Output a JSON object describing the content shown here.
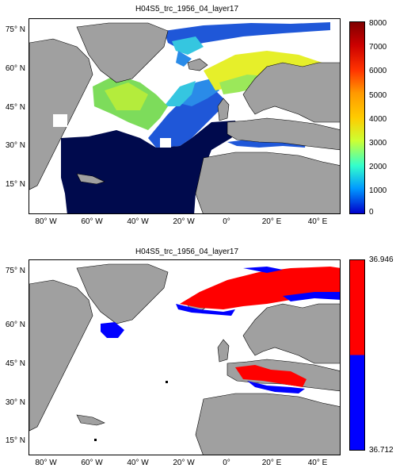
{
  "maps": [
    {
      "title": "H04S5_trc_1956_04_layer17",
      "colorbar_ticks": [
        "8000",
        "7000",
        "6000",
        "5000",
        "4000",
        "3000",
        "2000",
        "1000",
        "0"
      ]
    },
    {
      "title": "H04S5_trc_1956_04_layer17",
      "colorbar_ticks": [
        "36.946",
        "36.712"
      ],
      "colorbar_colors": [
        "#ff0000",
        "#0000ff"
      ]
    }
  ],
  "lat_labels": [
    "75° N",
    "60° N",
    "45° N",
    "30° N",
    "15° N"
  ],
  "lon_labels": [
    "80° W",
    "60° W",
    "40° W",
    "20° W",
    "0°",
    "20° E",
    "40° E"
  ],
  "colors": {
    "land": "#a0a0a0",
    "deep": "#000a4d",
    "ocean_empty": "#ffffff"
  }
}
